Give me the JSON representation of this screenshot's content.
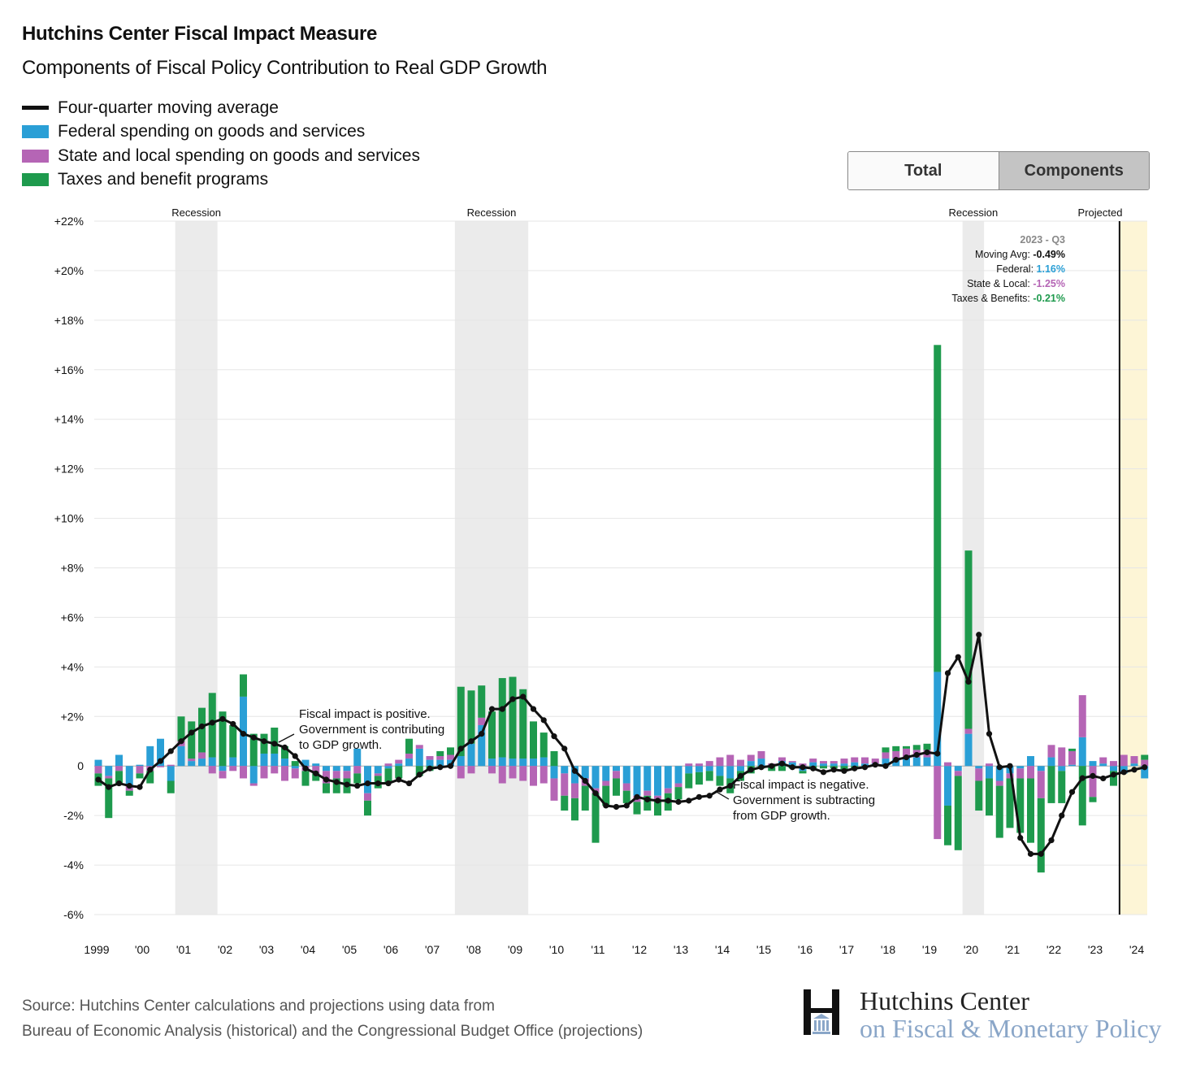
{
  "header": {
    "title": "Hutchins Center Fiscal Impact Measure",
    "subtitle": "Components of Fiscal Policy Contribution to Real GDP Growth"
  },
  "legend": [
    {
      "label": "Four-quarter moving average",
      "color": "#111111",
      "kind": "line"
    },
    {
      "label": "Federal spending on goods and services",
      "color": "#2a9fd6",
      "kind": "bar"
    },
    {
      "label": "State and local spending on goods and services",
      "color": "#b565b5",
      "kind": "bar"
    },
    {
      "label": "Taxes and benefit programs",
      "color": "#1e9a4d",
      "kind": "bar"
    }
  ],
  "toggle": {
    "total_label": "Total",
    "components_label": "Components",
    "selected": "Components"
  },
  "tooltip": {
    "period": "2023 - Q3",
    "moving_avg_label": "Moving Avg:",
    "moving_avg_value": "-0.49%",
    "federal_label": "Federal:",
    "federal_value": "1.16%",
    "state_local_label": "State & Local:",
    "state_local_value": "-1.25%",
    "taxes_label": "Taxes & Benefits:",
    "taxes_value": "-0.21%"
  },
  "annotations": {
    "positive": [
      "Fiscal impact is positive.",
      "Government is contributing",
      "to GDP growth."
    ],
    "negative": [
      "Fiscal impact is negative.",
      "Government is subtracting",
      "from GDP growth."
    ],
    "recession_label": "Recession",
    "projected_label": "Projected"
  },
  "source": {
    "line1": "Source: Hutchins Center calculations and projections using data from",
    "line2": "Bureau of Economic Analysis (historical) and the Congressional Budget Office (projections)"
  },
  "logo": {
    "line1": "Hutchins Center",
    "line2": "on Fiscal & Monetary Policy",
    "icon": "capitol-h-icon"
  },
  "chart_data": {
    "type": "bar",
    "start": "1999-Q1",
    "ylim": [
      -6,
      22
    ],
    "y_ticks": [
      "-6%",
      "-4%",
      "-2%",
      "0",
      "+2%",
      "+4%",
      "+6%",
      "+8%",
      "+10%",
      "+12%",
      "+14%",
      "+16%",
      "+18%",
      "+20%",
      "+22%"
    ],
    "x_ticks": [
      "1999",
      "'00",
      "'01",
      "'02",
      "'03",
      "'04",
      "'05",
      "'06",
      "'07",
      "'08",
      "'09",
      "'10",
      "'11",
      "'12",
      "'13",
      "'14",
      "'15",
      "'16",
      "'17",
      "'18",
      "'19",
      "'20",
      "'21",
      "'22",
      "'23",
      "'24"
    ],
    "recessions": [
      [
        "2001-Q1",
        "2001-Q4"
      ],
      [
        "2007-Q4",
        "2009-Q2"
      ],
      [
        "2020-Q1",
        "2020-Q2"
      ]
    ],
    "projected_from": "2023-Q4",
    "series": [
      {
        "name": "Federal spending on goods and services",
        "color": "#2a9fd6",
        "values": [
          0.25,
          -0.4,
          0.45,
          -0.8,
          0.05,
          0.8,
          1.1,
          -0.6,
          0.8,
          0.2,
          0.3,
          0.35,
          -0.2,
          0.35,
          2.8,
          -0.7,
          0.5,
          0.5,
          0.3,
          -0.1,
          0.25,
          0.1,
          -0.2,
          -0.2,
          -0.2,
          0.7,
          -1.1,
          -0.3,
          -0.1,
          0.1,
          0.3,
          0.7,
          0.25,
          0.25,
          0.25,
          0.4,
          0.9,
          1.65,
          0.3,
          0.35,
          0.3,
          0.3,
          0.3,
          0.35,
          -0.5,
          -0.3,
          -0.7,
          -0.5,
          -0.9,
          -0.6,
          -0.2,
          -0.7,
          -1.2,
          -1.0,
          -1.2,
          -0.9,
          -0.7,
          -0.3,
          -0.25,
          -0.2,
          -0.4,
          -0.5,
          -0.2,
          0.2,
          0.3,
          0.0,
          0.2,
          0.15,
          -0.2,
          0.15,
          0.1,
          0.1,
          0.1,
          0.15,
          0.1,
          0.1,
          0.3,
          0.3,
          0.35,
          0.35,
          0.35,
          3.8,
          -1.6,
          -0.2,
          1.3,
          -0.1,
          -0.5,
          -0.6,
          -0.3,
          -0.1,
          0.4,
          -0.2,
          0.35,
          -0.2,
          0.05,
          1.16,
          0.2,
          0.1,
          -0.2,
          -0.3,
          0.1,
          -0.5
        ]
      },
      {
        "name": "State and local spending on goods and services",
        "color": "#b565b5",
        "values": [
          -0.3,
          -0.1,
          -0.2,
          -0.2,
          -0.3,
          -0.2,
          -0.05,
          0.05,
          0.2,
          0.1,
          0.25,
          -0.3,
          -0.3,
          -0.2,
          -0.5,
          -0.1,
          -0.5,
          -0.3,
          -0.6,
          -0.4,
          -0.2,
          -0.3,
          -0.5,
          -0.3,
          -0.3,
          -0.3,
          -0.3,
          -0.1,
          0.1,
          0.15,
          0.2,
          0.15,
          0.15,
          0.15,
          0.2,
          -0.5,
          -0.3,
          0.3,
          -0.3,
          -0.7,
          -0.5,
          -0.6,
          -0.8,
          -0.7,
          -0.9,
          -0.9,
          -0.6,
          -0.3,
          -0.2,
          -0.2,
          -0.3,
          -0.3,
          -0.25,
          -0.2,
          -0.2,
          -0.2,
          -0.15,
          0.1,
          0.1,
          0.2,
          0.35,
          0.45,
          0.25,
          0.25,
          0.3,
          0.1,
          0.15,
          0.05,
          0.1,
          0.15,
          0.1,
          0.1,
          0.2,
          0.2,
          0.25,
          0.2,
          0.25,
          0.3,
          0.35,
          0.3,
          0.3,
          -2.95,
          0.15,
          -0.2,
          0.2,
          -0.5,
          0.1,
          -0.2,
          -0.2,
          -0.4,
          -0.5,
          -1.1,
          0.5,
          0.75,
          0.55,
          1.7,
          -1.25,
          0.25,
          0.2,
          0.45,
          0.3,
          0.25,
          0.35
        ]
      },
      {
        "name": "Taxes and benefit programs",
        "color": "#1e9a4d",
        "values": [
          -0.5,
          -1.6,
          -0.5,
          -0.2,
          -0.2,
          -0.5,
          0.0,
          -0.5,
          1.0,
          1.5,
          1.8,
          2.6,
          2.2,
          1.3,
          0.9,
          1.3,
          0.8,
          1.05,
          0.5,
          0.2,
          -0.6,
          -0.3,
          -0.4,
          -0.6,
          -0.6,
          -0.4,
          -0.6,
          -0.5,
          -0.6,
          -0.5,
          0.6,
          -0.4,
          -0.2,
          0.2,
          0.3,
          2.8,
          2.15,
          1.3,
          1.9,
          3.2,
          3.3,
          2.8,
          1.5,
          1.0,
          0.6,
          -0.6,
          -0.9,
          -1.0,
          -2.0,
          -0.8,
          -0.7,
          -0.5,
          -0.5,
          -0.6,
          -0.6,
          -0.7,
          -0.5,
          -0.6,
          -0.5,
          -0.4,
          -0.4,
          -0.6,
          -0.4,
          -0.3,
          -0.1,
          -0.2,
          -0.2,
          -0.1,
          -0.1,
          -0.1,
          -0.1,
          -0.1,
          -0.15,
          -0.1,
          -0.05,
          0.0,
          0.2,
          0.2,
          0.1,
          0.2,
          0.25,
          13.2,
          -1.6,
          -3.0,
          7.2,
          -1.2,
          -1.5,
          -2.1,
          -2.0,
          -2.2,
          -2.6,
          -3.0,
          -1.5,
          -1.3,
          0.1,
          -2.4,
          -0.21,
          0.0,
          -0.6,
          0.0,
          0.0,
          0.2,
          0.3
        ]
      },
      {
        "name": "Four-quarter moving average",
        "color": "#111111",
        "values": [
          -0.55,
          -0.85,
          -0.7,
          -0.8,
          -0.85,
          -0.15,
          0.2,
          0.6,
          1.0,
          1.35,
          1.6,
          1.75,
          1.9,
          1.7,
          1.3,
          1.15,
          1.0,
          0.9,
          0.75,
          0.4,
          -0.1,
          -0.3,
          -0.55,
          -0.65,
          -0.75,
          -0.8,
          -0.7,
          -0.7,
          -0.7,
          -0.55,
          -0.7,
          -0.35,
          -0.1,
          -0.05,
          0.0,
          0.7,
          1.0,
          1.3,
          2.3,
          2.3,
          2.7,
          2.8,
          2.3,
          1.85,
          1.2,
          0.7,
          -0.2,
          -0.6,
          -1.1,
          -1.6,
          -1.65,
          -1.6,
          -1.25,
          -1.35,
          -1.4,
          -1.4,
          -1.45,
          -1.4,
          -1.25,
          -1.2,
          -0.95,
          -0.8,
          -0.4,
          -0.15,
          -0.05,
          0.0,
          0.1,
          -0.05,
          -0.05,
          -0.1,
          -0.25,
          -0.15,
          -0.2,
          -0.1,
          -0.05,
          0.05,
          0.0,
          0.25,
          0.35,
          0.45,
          0.55,
          0.5,
          3.75,
          4.4,
          3.4,
          5.3,
          1.3,
          -0.05,
          0.0,
          -2.9,
          -3.55,
          -3.55,
          -3.0,
          -2.0,
          -1.05,
          -0.49,
          -0.4,
          -0.5,
          -0.35,
          -0.25,
          -0.15,
          -0.05
        ]
      }
    ]
  }
}
